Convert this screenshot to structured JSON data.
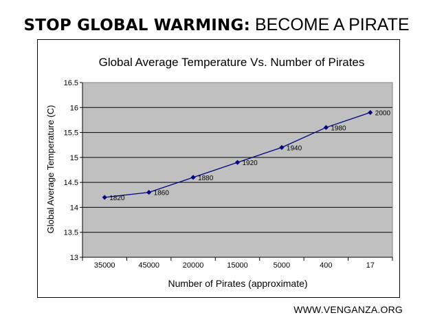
{
  "headline": {
    "bold_part": "STOP GLOBAL WARMING:",
    "light_part": "BECOME A PIRATE"
  },
  "credit": "WWW.VENGANZA.ORG",
  "colors": {
    "plot_bg": "#c0c0c0",
    "line": "#000080",
    "grid": "#000000"
  },
  "chart_data": {
    "type": "line",
    "title": "Global Average Temperature Vs. Number of Pirates",
    "xlabel": "Number of Pirates (approximate)",
    "ylabel": "Global Average Temperature (C)",
    "categories": [
      "35000",
      "45000",
      "20000",
      "15000",
      "5000",
      "400",
      "17"
    ],
    "values": [
      14.2,
      14.3,
      14.6,
      14.9,
      15.2,
      15.6,
      15.9
    ],
    "point_labels": [
      "1820",
      "1860",
      "1880",
      "1920",
      "1940",
      "1980",
      "2000"
    ],
    "ylim": [
      13,
      16.5
    ],
    "yticks": [
      "13",
      "13.5",
      "14",
      "14.5",
      "15",
      "15.5",
      "16",
      "16.5"
    ],
    "grid": true,
    "legend": "none",
    "marker": "diamond"
  }
}
